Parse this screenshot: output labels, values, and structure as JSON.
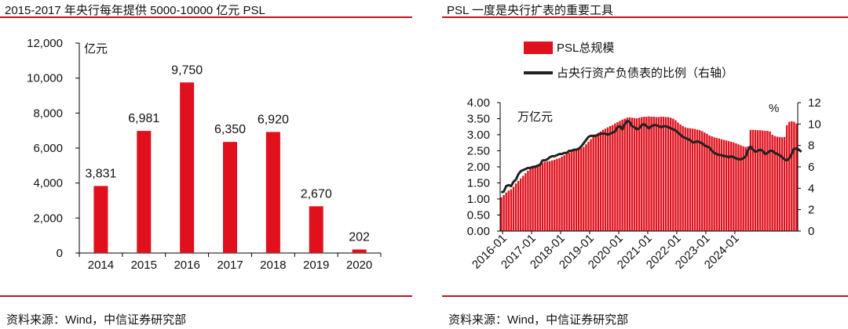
{
  "left": {
    "title": "2015-2017 年央行每年提供 5000-10000 亿元 PSL",
    "source": "资料来源：Wind，中信证券研究部"
  },
  "right": {
    "title": "PSL 一度是央行扩表的重要工具",
    "source": "资料来源：Wind，中信证券研究部"
  },
  "colors": {
    "accent": "#c8101c",
    "bar": "#e0101c",
    "line": "#222222"
  },
  "chart_data": [
    {
      "type": "bar",
      "title": "2015-2017 年央行每年提供 5000-10000 亿元 PSL",
      "unit_label": "亿元",
      "categories": [
        "2014",
        "2015",
        "2016",
        "2017",
        "2018",
        "2019",
        "2020"
      ],
      "values": [
        3831,
        6981,
        9750,
        6350,
        6920,
        2670,
        202
      ],
      "data_labels": [
        "3,831",
        "6,981",
        "9,750",
        "6,350",
        "6,920",
        "2,670",
        "202"
      ],
      "ylim": [
        0,
        12000
      ],
      "yticks": [
        "0",
        "2,000",
        "4,000",
        "6,000",
        "8,000",
        "10,000",
        "12,000"
      ],
      "grid": false
    },
    {
      "type": "bar+line",
      "title": "PSL 一度是央行扩表的重要工具",
      "left_unit_label": "万亿元",
      "right_unit_label": "%",
      "legend": {
        "placement": "top",
        "entries": [
          "PSL总规模",
          "占央行资产负债表的比例（右轴）"
        ]
      },
      "x_ticks": [
        "2016-01",
        "2017-01",
        "2018-01",
        "2019-01",
        "2020-01",
        "2021-01",
        "2022-01",
        "2023-01",
        "2024-01"
      ],
      "ylim_left": [
        0,
        4
      ],
      "yticks_left": [
        "0.00",
        "0.50",
        "1.00",
        "1.50",
        "2.00",
        "2.50",
        "3.00",
        "3.50",
        "4.00"
      ],
      "ylim_right": [
        0,
        12
      ],
      "yticks_right": [
        "0",
        "2",
        "4",
        "6",
        "8",
        "10",
        "12"
      ],
      "x_start": "2015-12",
      "series": [
        {
          "name": "PSL总规模",
          "kind": "bar",
          "values": [
            1.05,
            1.12,
            1.2,
            1.26,
            1.3,
            1.38,
            1.48,
            1.56,
            1.64,
            1.72,
            1.8,
            1.88,
            1.97,
            2.02,
            2.05,
            2.08,
            2.1,
            2.12,
            2.15,
            2.17,
            2.18,
            2.2,
            2.22,
            2.25,
            2.27,
            2.32,
            2.36,
            2.4,
            2.44,
            2.48,
            2.5,
            2.52,
            2.55,
            2.58,
            2.62,
            2.7,
            2.78,
            2.86,
            2.94,
            3.01,
            3.06,
            3.1,
            3.15,
            3.19,
            3.23,
            3.27,
            3.3,
            3.35,
            3.39,
            3.43,
            3.47,
            3.5,
            3.53,
            3.54,
            3.53,
            3.52,
            3.51,
            3.53,
            3.55,
            3.56,
            3.56,
            3.57,
            3.56,
            3.56,
            3.55,
            3.55,
            3.56,
            3.56,
            3.55,
            3.55,
            3.53,
            3.5,
            3.45,
            3.38,
            3.32,
            3.27,
            3.23,
            3.21,
            3.2,
            3.19,
            3.18,
            3.16,
            3.14,
            3.11,
            3.07,
            3.03,
            2.98,
            2.95,
            2.92,
            2.9,
            2.88,
            2.86,
            2.84,
            2.82,
            2.8,
            2.78,
            2.76,
            2.73,
            2.7,
            2.67,
            2.64,
            2.62,
            2.64,
            3.15,
            3.15,
            3.15,
            3.14,
            3.14,
            3.13,
            3.12,
            3.12,
            3.1,
            3.0,
            2.96,
            2.94,
            2.93,
            2.92,
            2.93,
            3.3,
            3.4,
            3.42,
            3.4,
            3.35
          ]
        },
        {
          "name": "占央行资产负债表的比例（右轴）",
          "kind": "line",
          "axis": "right",
          "values": [
            3.6,
            3.7,
            4.2,
            4.3,
            4.2,
            4.6,
            4.8,
            5.3,
            5.6,
            5.7,
            5.8,
            5.9,
            5.9,
            6.0,
            6.0,
            6.1,
            6.2,
            6.6,
            6.6,
            6.7,
            6.9,
            7.0,
            7.0,
            7.1,
            7.2,
            7.2,
            7.3,
            7.3,
            7.5,
            7.5,
            7.6,
            7.6,
            7.7,
            7.9,
            8.2,
            8.5,
            8.8,
            8.9,
            8.9,
            8.9,
            9.0,
            9.1,
            9.1,
            9.1,
            9.0,
            9.1,
            9.2,
            9.3,
            9.7,
            9.8,
            9.5,
            10.0,
            10.3,
            10.2,
            9.8,
            9.7,
            9.5,
            9.6,
            9.9,
            10.0,
            9.8,
            9.6,
            9.8,
            9.9,
            9.9,
            9.8,
            9.7,
            9.8,
            9.8,
            9.7,
            9.6,
            9.5,
            9.4,
            9.2,
            9.0,
            8.8,
            8.7,
            8.6,
            8.5,
            8.3,
            8.3,
            8.4,
            8.3,
            8.2,
            8.0,
            7.9,
            7.8,
            7.5,
            7.3,
            7.2,
            7.1,
            7.1,
            7.0,
            7.0,
            6.9,
            7.0,
            6.9,
            6.8,
            6.7,
            6.7,
            6.8,
            7.0,
            7.6,
            7.9,
            7.6,
            7.4,
            7.5,
            7.6,
            7.5,
            7.2,
            7.3,
            7.5,
            7.5,
            7.3,
            7.2,
            7.1,
            6.9,
            6.7,
            6.6,
            6.8,
            7.2,
            7.7,
            7.7,
            7.6,
            7.4
          ]
        }
      ]
    }
  ]
}
